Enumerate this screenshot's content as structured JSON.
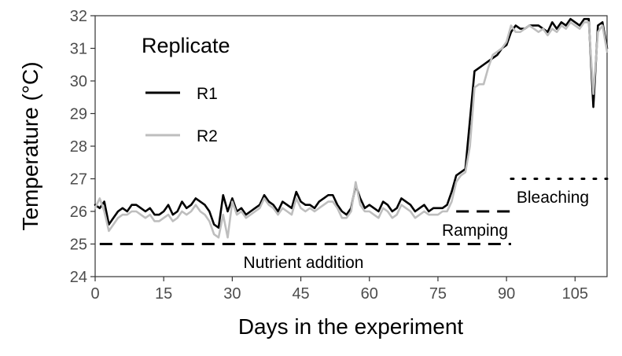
{
  "chart_data": {
    "type": "line",
    "xlabel": "Days in the experiment",
    "ylabel": "Temperature (°C)",
    "xlim": [
      0,
      112
    ],
    "ylim": [
      24,
      32
    ],
    "xticks": [
      0,
      15,
      30,
      45,
      60,
      75,
      90,
      105
    ],
    "yticks": [
      24,
      25,
      26,
      27,
      28,
      29,
      30,
      31,
      32
    ],
    "grid": false,
    "legend": {
      "title": "Replicate",
      "position": "top-left inside"
    },
    "series": [
      {
        "name": "R1",
        "color": "#000000",
        "x": [
          0,
          1,
          2,
          3,
          4,
          5,
          6,
          7,
          8,
          9,
          10,
          11,
          12,
          13,
          14,
          15,
          16,
          17,
          18,
          19,
          20,
          21,
          22,
          23,
          24,
          25,
          26,
          27,
          28,
          29,
          30,
          31,
          32,
          33,
          34,
          35,
          36,
          37,
          38,
          39,
          40,
          41,
          42,
          43,
          44,
          45,
          46,
          47,
          48,
          49,
          50,
          51,
          52,
          53,
          54,
          55,
          56,
          57,
          58,
          59,
          60,
          61,
          62,
          63,
          64,
          65,
          66,
          67,
          68,
          69,
          70,
          71,
          72,
          73,
          74,
          75,
          76,
          77,
          78,
          79,
          80,
          81,
          82,
          83,
          84,
          85,
          86,
          87,
          88,
          89,
          90,
          91,
          92,
          93,
          94,
          95,
          96,
          97,
          98,
          99,
          100,
          101,
          102,
          103,
          104,
          105,
          106,
          107,
          108,
          109,
          110,
          111,
          112
        ],
        "values": [
          26.2,
          26.1,
          26.3,
          25.6,
          25.8,
          26.0,
          26.1,
          26.0,
          26.2,
          26.2,
          26.1,
          26.0,
          26.1,
          25.9,
          25.9,
          26.0,
          26.2,
          25.9,
          26.0,
          26.3,
          26.1,
          26.2,
          26.4,
          26.3,
          26.2,
          26.0,
          25.6,
          25.5,
          26.5,
          26.0,
          26.4,
          26.0,
          26.1,
          25.9,
          26.0,
          26.1,
          26.2,
          26.5,
          26.3,
          26.2,
          26.0,
          26.3,
          26.2,
          26.1,
          26.6,
          26.3,
          26.2,
          26.2,
          26.1,
          26.3,
          26.4,
          26.5,
          26.5,
          26.2,
          26.0,
          25.9,
          26.1,
          26.8,
          26.4,
          26.1,
          26.2,
          26.1,
          26.0,
          26.3,
          26.2,
          26.0,
          26.1,
          26.4,
          26.3,
          26.2,
          26.0,
          26.1,
          26.2,
          26.0,
          26.1,
          26.1,
          26.1,
          26.2,
          26.6,
          27.1,
          27.2,
          27.3,
          28.8,
          30.3,
          30.4,
          30.5,
          30.6,
          30.7,
          30.8,
          31.0,
          31.1,
          31.5,
          31.7,
          31.6,
          31.6,
          31.7,
          31.7,
          31.7,
          31.6,
          31.5,
          31.8,
          31.6,
          31.8,
          31.7,
          31.9,
          31.8,
          31.7,
          31.9,
          31.9,
          29.2,
          31.7,
          31.8,
          31.0
        ]
      },
      {
        "name": "R2",
        "color": "#bebebe",
        "x": [
          0,
          1,
          2,
          3,
          4,
          5,
          6,
          7,
          8,
          9,
          10,
          11,
          12,
          13,
          14,
          15,
          16,
          17,
          18,
          19,
          20,
          21,
          22,
          23,
          24,
          25,
          26,
          27,
          28,
          29,
          30,
          31,
          32,
          33,
          34,
          35,
          36,
          37,
          38,
          39,
          40,
          41,
          42,
          43,
          44,
          45,
          46,
          47,
          48,
          49,
          50,
          51,
          52,
          53,
          54,
          55,
          56,
          57,
          58,
          59,
          60,
          61,
          62,
          63,
          64,
          65,
          66,
          67,
          68,
          69,
          70,
          71,
          72,
          73,
          74,
          75,
          76,
          77,
          78,
          79,
          80,
          81,
          82,
          83,
          84,
          85,
          86,
          87,
          88,
          89,
          90,
          91,
          92,
          93,
          94,
          95,
          96,
          97,
          98,
          99,
          100,
          101,
          102,
          103,
          104,
          105,
          106,
          107,
          108,
          109,
          110,
          111,
          112
        ],
        "values": [
          26.1,
          26.4,
          26.0,
          25.4,
          25.6,
          25.8,
          25.9,
          25.9,
          26.0,
          26.0,
          25.9,
          25.8,
          25.9,
          25.7,
          25.7,
          25.8,
          25.9,
          25.7,
          25.8,
          26.0,
          25.9,
          26.0,
          26.2,
          26.0,
          25.9,
          25.7,
          25.3,
          25.2,
          25.9,
          25.2,
          26.3,
          25.9,
          26.0,
          25.8,
          25.9,
          26.0,
          26.1,
          26.4,
          26.2,
          26.1,
          25.9,
          26.1,
          26.0,
          25.9,
          26.4,
          26.1,
          26.0,
          26.1,
          26.0,
          26.1,
          26.2,
          26.3,
          26.3,
          26.1,
          25.8,
          25.8,
          26.0,
          26.9,
          26.2,
          26.0,
          26.0,
          25.9,
          25.8,
          26.1,
          26.0,
          25.8,
          25.9,
          26.2,
          26.1,
          26.0,
          25.8,
          25.9,
          26.0,
          25.9,
          25.9,
          25.9,
          26.0,
          26.0,
          26.3,
          26.9,
          27.1,
          27.2,
          28.0,
          29.8,
          29.9,
          29.9,
          30.4,
          30.8,
          30.9,
          31.0,
          31.2,
          31.7,
          31.5,
          31.5,
          31.6,
          31.7,
          31.6,
          31.5,
          31.6,
          31.4,
          31.6,
          31.5,
          31.7,
          31.6,
          31.8,
          31.7,
          31.6,
          31.8,
          31.8,
          29.6,
          31.5,
          31.7,
          30.9
        ]
      }
    ],
    "annotations": [
      {
        "label": "Nutrient addition",
        "x_range": [
          1,
          91
        ],
        "y": 25,
        "style": "dashed"
      },
      {
        "label": "Ramping",
        "x_range": [
          79,
          91
        ],
        "y": 26,
        "style": "dashed"
      },
      {
        "label": "Bleaching",
        "x_range": [
          91,
          112
        ],
        "y": 27,
        "style": "dotted"
      }
    ]
  }
}
